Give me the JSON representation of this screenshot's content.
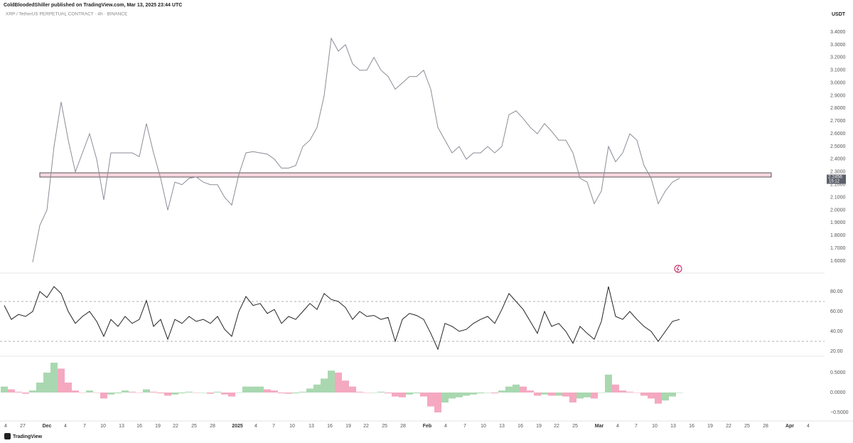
{
  "header": {
    "publisher": "ColdBloodedShiller published on TradingView.com, Mar 13, 2025 23:44 UTC",
    "symbol": "XRP / TetherUS PERPETUAL CONTRACT · 4h · BINANCE",
    "currency": "USDT"
  },
  "chart_data": [
    {
      "type": "line",
      "color": "#8a8d96",
      "last_price": 2.2456,
      "countdown": "15:12",
      "values": [
        1.59,
        1.88,
        2.0,
        2.5,
        2.85,
        2.55,
        2.3,
        2.45,
        2.6,
        2.4,
        2.08,
        2.45,
        2.45,
        2.45,
        2.45,
        2.42,
        2.68,
        2.45,
        2.25,
        2.0,
        2.22,
        2.2,
        2.25,
        2.26,
        2.22,
        2.2,
        2.2,
        2.1,
        2.04,
        2.28,
        2.45,
        2.46,
        2.45,
        2.44,
        2.4,
        2.33,
        2.33,
        2.35,
        2.5,
        2.55,
        2.65,
        2.9,
        3.35,
        3.25,
        3.3,
        3.15,
        3.1,
        3.1,
        3.2,
        3.1,
        3.05,
        2.95,
        3.0,
        3.05,
        3.05,
        3.1,
        2.95,
        2.65,
        2.55,
        2.45,
        2.5,
        2.4,
        2.45,
        2.45,
        2.5,
        2.45,
        2.5,
        2.75,
        2.78,
        2.72,
        2.65,
        2.6,
        2.68,
        2.62,
        2.55,
        2.55,
        2.45,
        2.25,
        2.22,
        2.05,
        2.15,
        2.5,
        2.38,
        2.45,
        2.6,
        2.55,
        2.35,
        2.25,
        2.05,
        2.15,
        2.22,
        2.25
      ],
      "ylim": [
        1.4994,
        3.484
      ],
      "yticks": [
        {
          "value": 1.6,
          "label": "1.6000"
        },
        {
          "value": 1.7,
          "label": "1.7000"
        },
        {
          "value": 1.8,
          "label": "1.8000"
        },
        {
          "value": 1.9,
          "label": "1.9000"
        },
        {
          "value": 2.0,
          "label": "2.0000"
        },
        {
          "value": 2.1,
          "label": "2.1000"
        },
        {
          "value": 2.2,
          "label": "2.2000"
        },
        {
          "value": 2.3,
          "label": "2.3000"
        },
        {
          "value": 2.4,
          "label": "2.4000"
        },
        {
          "value": 2.5,
          "label": "2.5000"
        },
        {
          "value": 2.6,
          "label": "2.6000"
        },
        {
          "value": 2.7,
          "label": "2.7000"
        },
        {
          "value": 2.8,
          "label": "2.8000"
        },
        {
          "value": 2.9,
          "label": "2.9000"
        },
        {
          "value": 3.0,
          "label": "3.0000"
        },
        {
          "value": 3.1,
          "label": "3.1000"
        },
        {
          "value": 3.2,
          "label": "3.2000"
        },
        {
          "value": 3.3,
          "label": "3.3000"
        },
        {
          "value": 3.4,
          "label": "3.4000"
        }
      ]
    },
    {
      "type": "line",
      "color": "#222222",
      "levels": [
        70,
        30
      ],
      "values": [
        66,
        52,
        57,
        55,
        60,
        80,
        74,
        85,
        78,
        60,
        48,
        55,
        60,
        50,
        35,
        52,
        45,
        55,
        48,
        52,
        71,
        45,
        52,
        32,
        52,
        48,
        55,
        50,
        52,
        48,
        55,
        42,
        35,
        60,
        75,
        66,
        68,
        58,
        62,
        48,
        55,
        52,
        60,
        68,
        62,
        78,
        72,
        70,
        64,
        52,
        60,
        55,
        56,
        52,
        54,
        30,
        52,
        58,
        56,
        52,
        38,
        22,
        48,
        45,
        40,
        42,
        48,
        52,
        55,
        48,
        62,
        78,
        70,
        62,
        50,
        38,
        60,
        45,
        48,
        40,
        28,
        45,
        38,
        32,
        50,
        85,
        55,
        52,
        60,
        52,
        45,
        40,
        30,
        40,
        50,
        52
      ],
      "ylim": [
        15.7,
        97.9
      ],
      "yticks": [
        {
          "value": 20,
          "label": "20.00"
        },
        {
          "value": 40,
          "label": "40.00"
        },
        {
          "value": 60,
          "label": "60.00"
        },
        {
          "value": 80,
          "label": "80.00"
        }
      ]
    },
    {
      "type": "bar",
      "up_color": "#a9d8b0",
      "down_color": "#f4a9c1",
      "values": [
        0.15,
        0.08,
        0.02,
        -0.03,
        0.05,
        0.25,
        0.5,
        0.75,
        0.6,
        0.25,
        0.05,
        0.0,
        0.05,
        0.0,
        -0.15,
        -0.05,
        -0.02,
        0.05,
        0.02,
        0.0,
        0.08,
        0.02,
        -0.02,
        -0.08,
        -0.05,
        -0.02,
        0.02,
        0.0,
        0.0,
        -0.03,
        0.02,
        -0.05,
        -0.1,
        0.0,
        0.15,
        0.15,
        0.15,
        0.08,
        0.05,
        -0.02,
        -0.03,
        -0.02,
        0.02,
        0.1,
        0.2,
        0.35,
        0.55,
        0.5,
        0.3,
        0.15,
        0.02,
        0.0,
        0.0,
        0.02,
        -0.02,
        -0.1,
        -0.12,
        -0.05,
        -0.02,
        -0.1,
        -0.35,
        -0.5,
        -0.25,
        -0.15,
        -0.12,
        -0.08,
        -0.05,
        -0.02,
        0.0,
        -0.02,
        0.05,
        0.15,
        0.2,
        0.15,
        0.05,
        -0.08,
        -0.05,
        -0.08,
        -0.08,
        -0.1,
        -0.25,
        -0.15,
        -0.12,
        -0.15,
        0.0,
        0.45,
        0.2,
        0.05,
        0.02,
        0.0,
        -0.08,
        -0.15,
        -0.28,
        -0.2,
        -0.1,
        0.0
      ],
      "ylim": [
        -0.714,
        0.893
      ],
      "yticks": [
        {
          "value": -0.5,
          "label": "−0.5000"
        },
        {
          "value": 0,
          "label": "0.0000"
        },
        {
          "value": 0.5,
          "label": "0.5000"
        }
      ]
    }
  ],
  "x_axis": {
    "categories": [
      "4",
      "27",
      "Dec",
      "4",
      "7",
      "10",
      "13",
      "16",
      "19",
      "22",
      "25",
      "28",
      "2025",
      "4",
      "7",
      "10",
      "13",
      "16",
      "19",
      "22",
      "25",
      "28",
      "Feb",
      "4",
      "7",
      "10",
      "13",
      "16",
      "19",
      "22",
      "25",
      "Mar",
      "4",
      "7",
      "10",
      "13",
      "16",
      "19",
      "22",
      "25",
      "28",
      "Apr",
      "4"
    ]
  },
  "footer": {
    "brand": "TradingView"
  }
}
